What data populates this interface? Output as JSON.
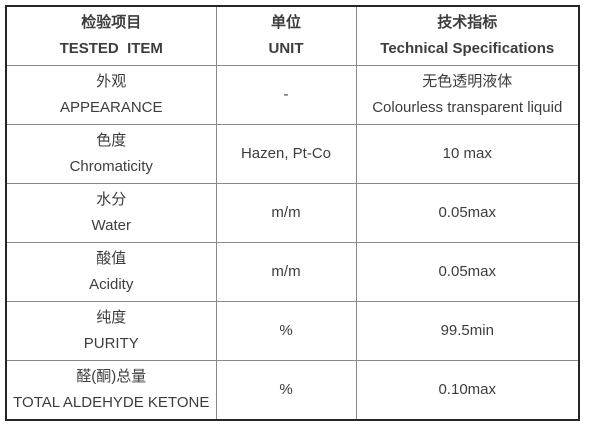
{
  "table": {
    "header": {
      "item_zh": "检验项目",
      "item_en": "TESTED  ITEM",
      "unit_zh": "单位",
      "unit_en": "UNIT",
      "spec_zh": "技术指标",
      "spec_en": "Technical Specifications"
    },
    "rows": [
      {
        "item_zh": "外观",
        "item_en": "APPEARANCE",
        "unit": "-",
        "spec_zh": "无色透明液体",
        "spec_en": "Colourless transparent liquid"
      },
      {
        "item_zh": "色度",
        "item_en": "Chromaticity",
        "unit": "Hazen, Pt-Co",
        "spec": "10 max"
      },
      {
        "item_zh": "水分",
        "item_en": "Water",
        "unit": "m/m",
        "spec": "0.05max"
      },
      {
        "item_zh": "酸值",
        "item_en": "Acidity",
        "unit": "m/m",
        "spec": "0.05max"
      },
      {
        "item_zh": "纯度",
        "item_en": "PURITY",
        "unit": "%",
        "spec": "99.5min"
      },
      {
        "item_zh": "醛(酮)总量",
        "item_en": "TOTAL ALDEHYDE KETONE",
        "unit": "%",
        "spec": "0.10max"
      }
    ]
  },
  "colors": {
    "background": "#ffffff",
    "text": "#3d3d3d",
    "outer_border": "#262626",
    "grid_line": "#8a8a8a"
  }
}
